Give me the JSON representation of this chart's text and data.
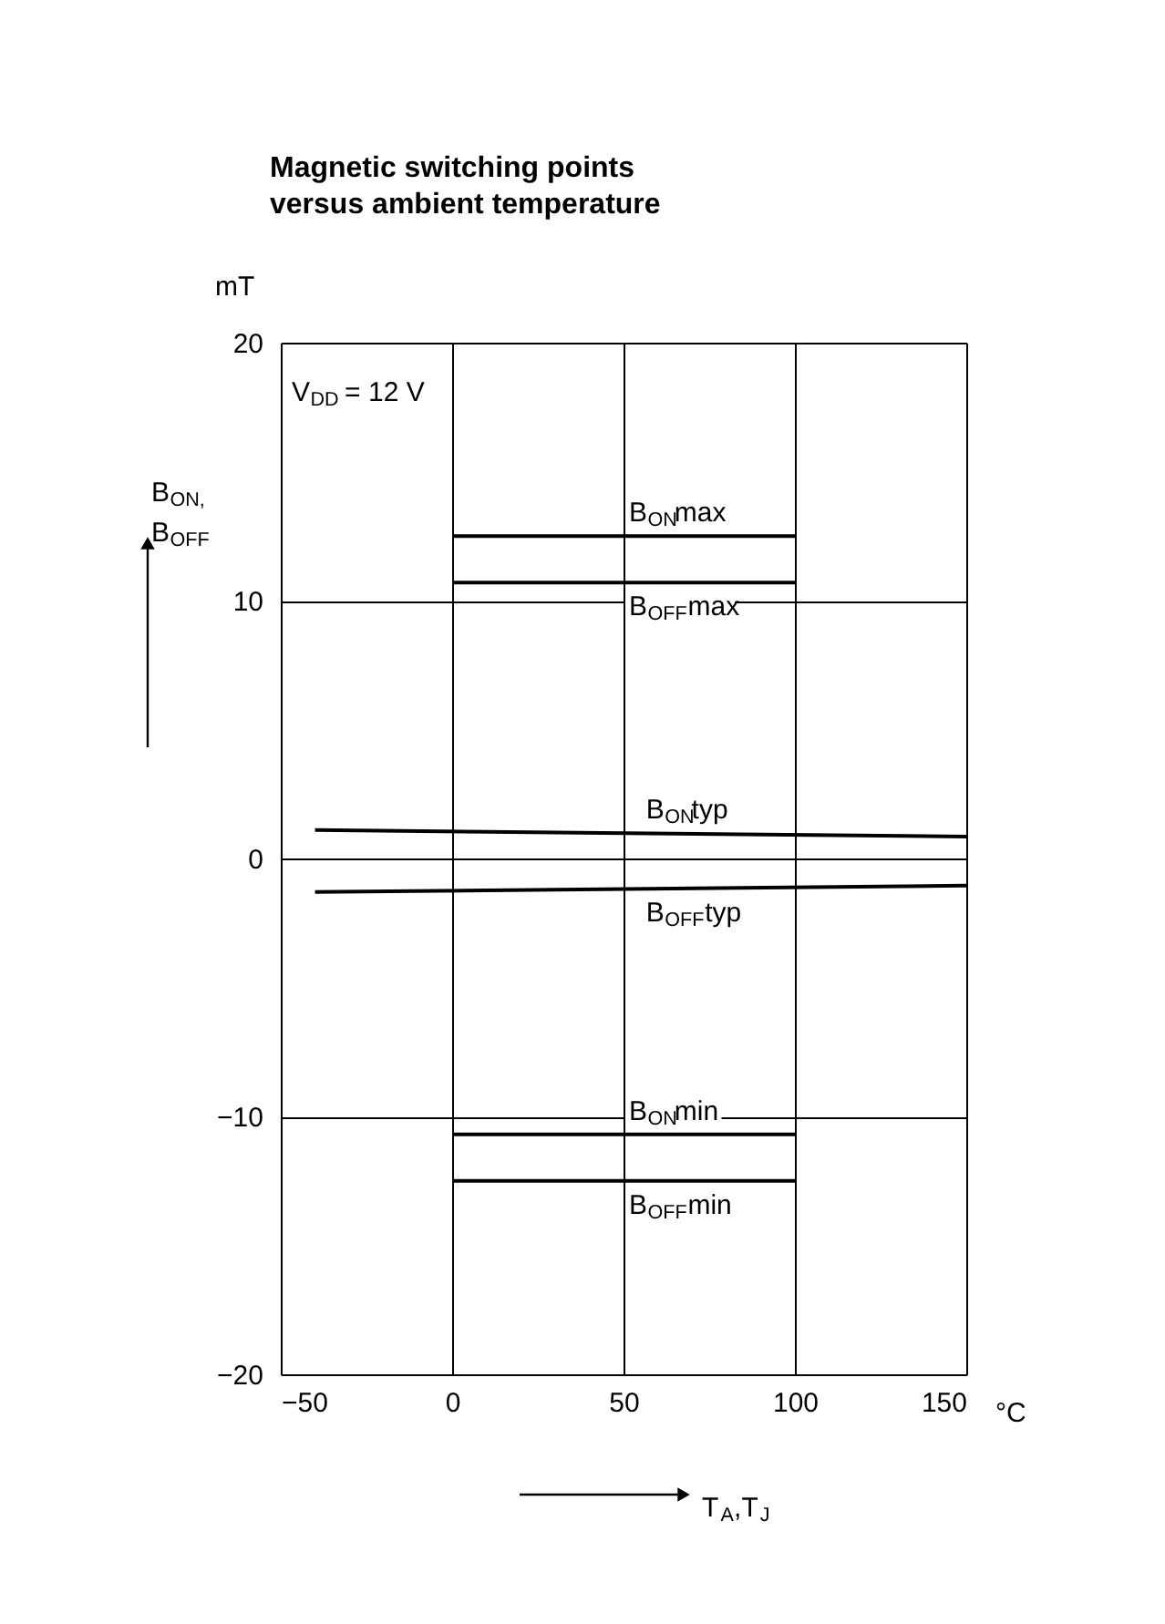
{
  "chart_data": {
    "type": "line",
    "title": "Magnetic switching points\nversus ambient temperature",
    "xlabel": "T$_{A}$,T$_{J}$",
    "ylabel": "B$_{ON,}$\nB$_{OFF}$",
    "annotations": [
      "mT",
      "°C",
      "V$_{DD}$ = 12 V"
    ],
    "xlim": [
      -50,
      150
    ],
    "xticks": [
      {
        "value": -50,
        "label": "−50"
      },
      0,
      50,
      100,
      150
    ],
    "ylim": [
      -20,
      20
    ],
    "yticks": [
      {
        "value": -20,
        "label": "−20"
      },
      {
        "value": -10,
        "label": "−10"
      },
      0,
      10,
      20
    ],
    "grid": true,
    "legend": false,
    "line_style": "solid",
    "marker": "none",
    "series": [
      {
        "name": "B$_{ON}$max",
        "color": "#000000",
        "x": [
          0,
          100
        ],
        "values": [
          12.5,
          12.5
        ]
      },
      {
        "name": "B$_{OFF}$max",
        "color": "#000000",
        "x": [
          0,
          100
        ],
        "values": [
          10.7,
          10.7
        ]
      },
      {
        "name": "B$_{ON}$typ",
        "color": "#000000",
        "x": [
          -40,
          150
        ],
        "values": [
          1.1,
          0.85
        ]
      },
      {
        "name": "B$_{OFF}$typ",
        "color": "#000000",
        "x": [
          -40,
          150
        ],
        "values": [
          -1.3,
          -1.05
        ]
      },
      {
        "name": "B$_{ON}$min",
        "color": "#000000",
        "x": [
          0,
          100
        ],
        "values": [
          -10.7,
          -10.7
        ]
      },
      {
        "name": "B$_{OFF}$min",
        "color": "#000000",
        "x": [
          0,
          100
        ],
        "values": [
          -12.5,
          -12.5
        ]
      }
    ]
  }
}
